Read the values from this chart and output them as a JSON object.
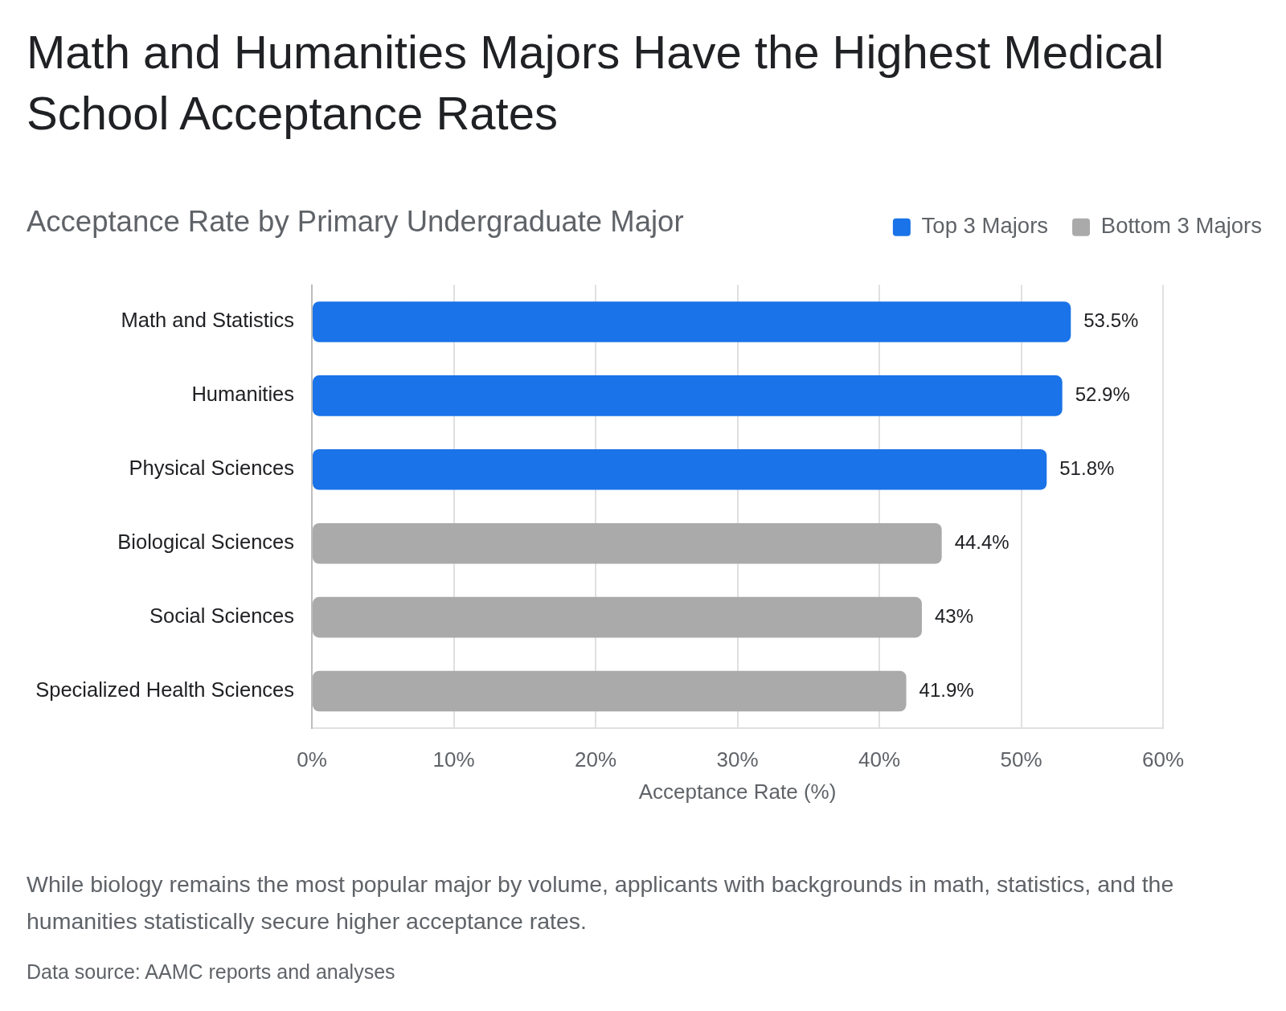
{
  "chart_data": {
    "type": "bar",
    "orientation": "horizontal",
    "title": "Math and Humanities Majors Have the Highest Medical School Acceptance Rates",
    "subtitle": "Acceptance Rate by Primary Undergraduate Major",
    "xlabel": "Acceptance Rate (%)",
    "categories": [
      "Math and Statistics",
      "Humanities",
      "Physical Sciences",
      "Biological Sciences",
      "Social Sciences",
      "Specialized Health Sciences"
    ],
    "series": [
      {
        "name": "Top 3 Majors",
        "color": "#1a73e8",
        "values": [
          53.5,
          52.9,
          51.8,
          null,
          null,
          null
        ],
        "value_labels": [
          "53.5%",
          "52.9%",
          "51.8%",
          null,
          null,
          null
        ]
      },
      {
        "name": "Bottom 3 Majors",
        "color": "#aaaaaa",
        "values": [
          null,
          null,
          null,
          44.4,
          43,
          41.9
        ],
        "value_labels": [
          null,
          null,
          null,
          "44.4%",
          "43%",
          "41.9%"
        ]
      }
    ],
    "xlim": [
      0,
      60
    ],
    "xticks": [
      {
        "value": 0,
        "label": "0%"
      },
      {
        "value": 10,
        "label": "10%"
      },
      {
        "value": 20,
        "label": "20%"
      },
      {
        "value": 30,
        "label": "30%"
      },
      {
        "value": 40,
        "label": "40%"
      },
      {
        "value": 50,
        "label": "50%"
      },
      {
        "value": 60,
        "label": "60%"
      }
    ],
    "grid": "x",
    "legend": "top right",
    "annotations": [
      "While biology remains the most popular major by volume, applicants with backgrounds in math, statistics, and the humanities statistically secure higher acceptance rates.",
      "Data source: AAMC reports and analyses"
    ]
  }
}
